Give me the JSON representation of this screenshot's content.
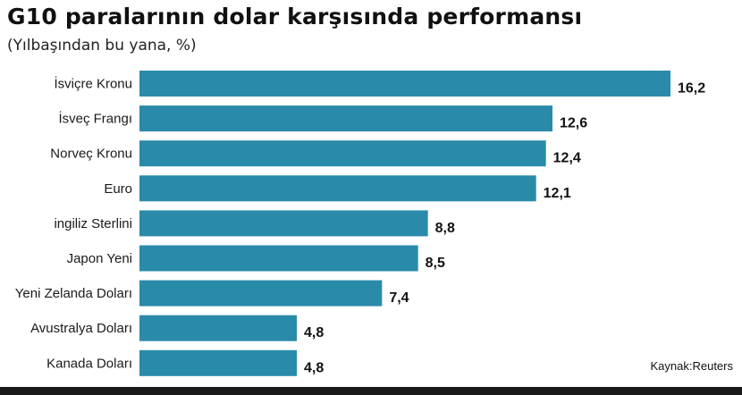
{
  "chart_data": {
    "type": "bar",
    "orientation": "horizontal",
    "title": "G10 paralarının dolar karşısında performansı",
    "subtitle": "(Yılbaşından bu yana, %)",
    "categories": [
      "İsviçre Kronu",
      "İsveç Frangı",
      "Norveç Kronu",
      "Euro",
      "ingiliz Sterlini",
      "Japon Yeni",
      "Yeni Zelanda Doları",
      "Avustralya Doları",
      "Kanada Doları"
    ],
    "values": [
      16.2,
      12.6,
      12.4,
      12.1,
      8.8,
      8.5,
      7.4,
      4.8,
      4.8
    ],
    "value_labels": [
      "16,2",
      "12,6",
      "12,4",
      "12,1",
      "8,8",
      "8,5",
      "7,4",
      "4,8",
      "4,8"
    ],
    "xlim": [
      0,
      16.2
    ],
    "grid": false,
    "bar_color": "#2a8aaa"
  },
  "source": "Kaynak:Reuters"
}
